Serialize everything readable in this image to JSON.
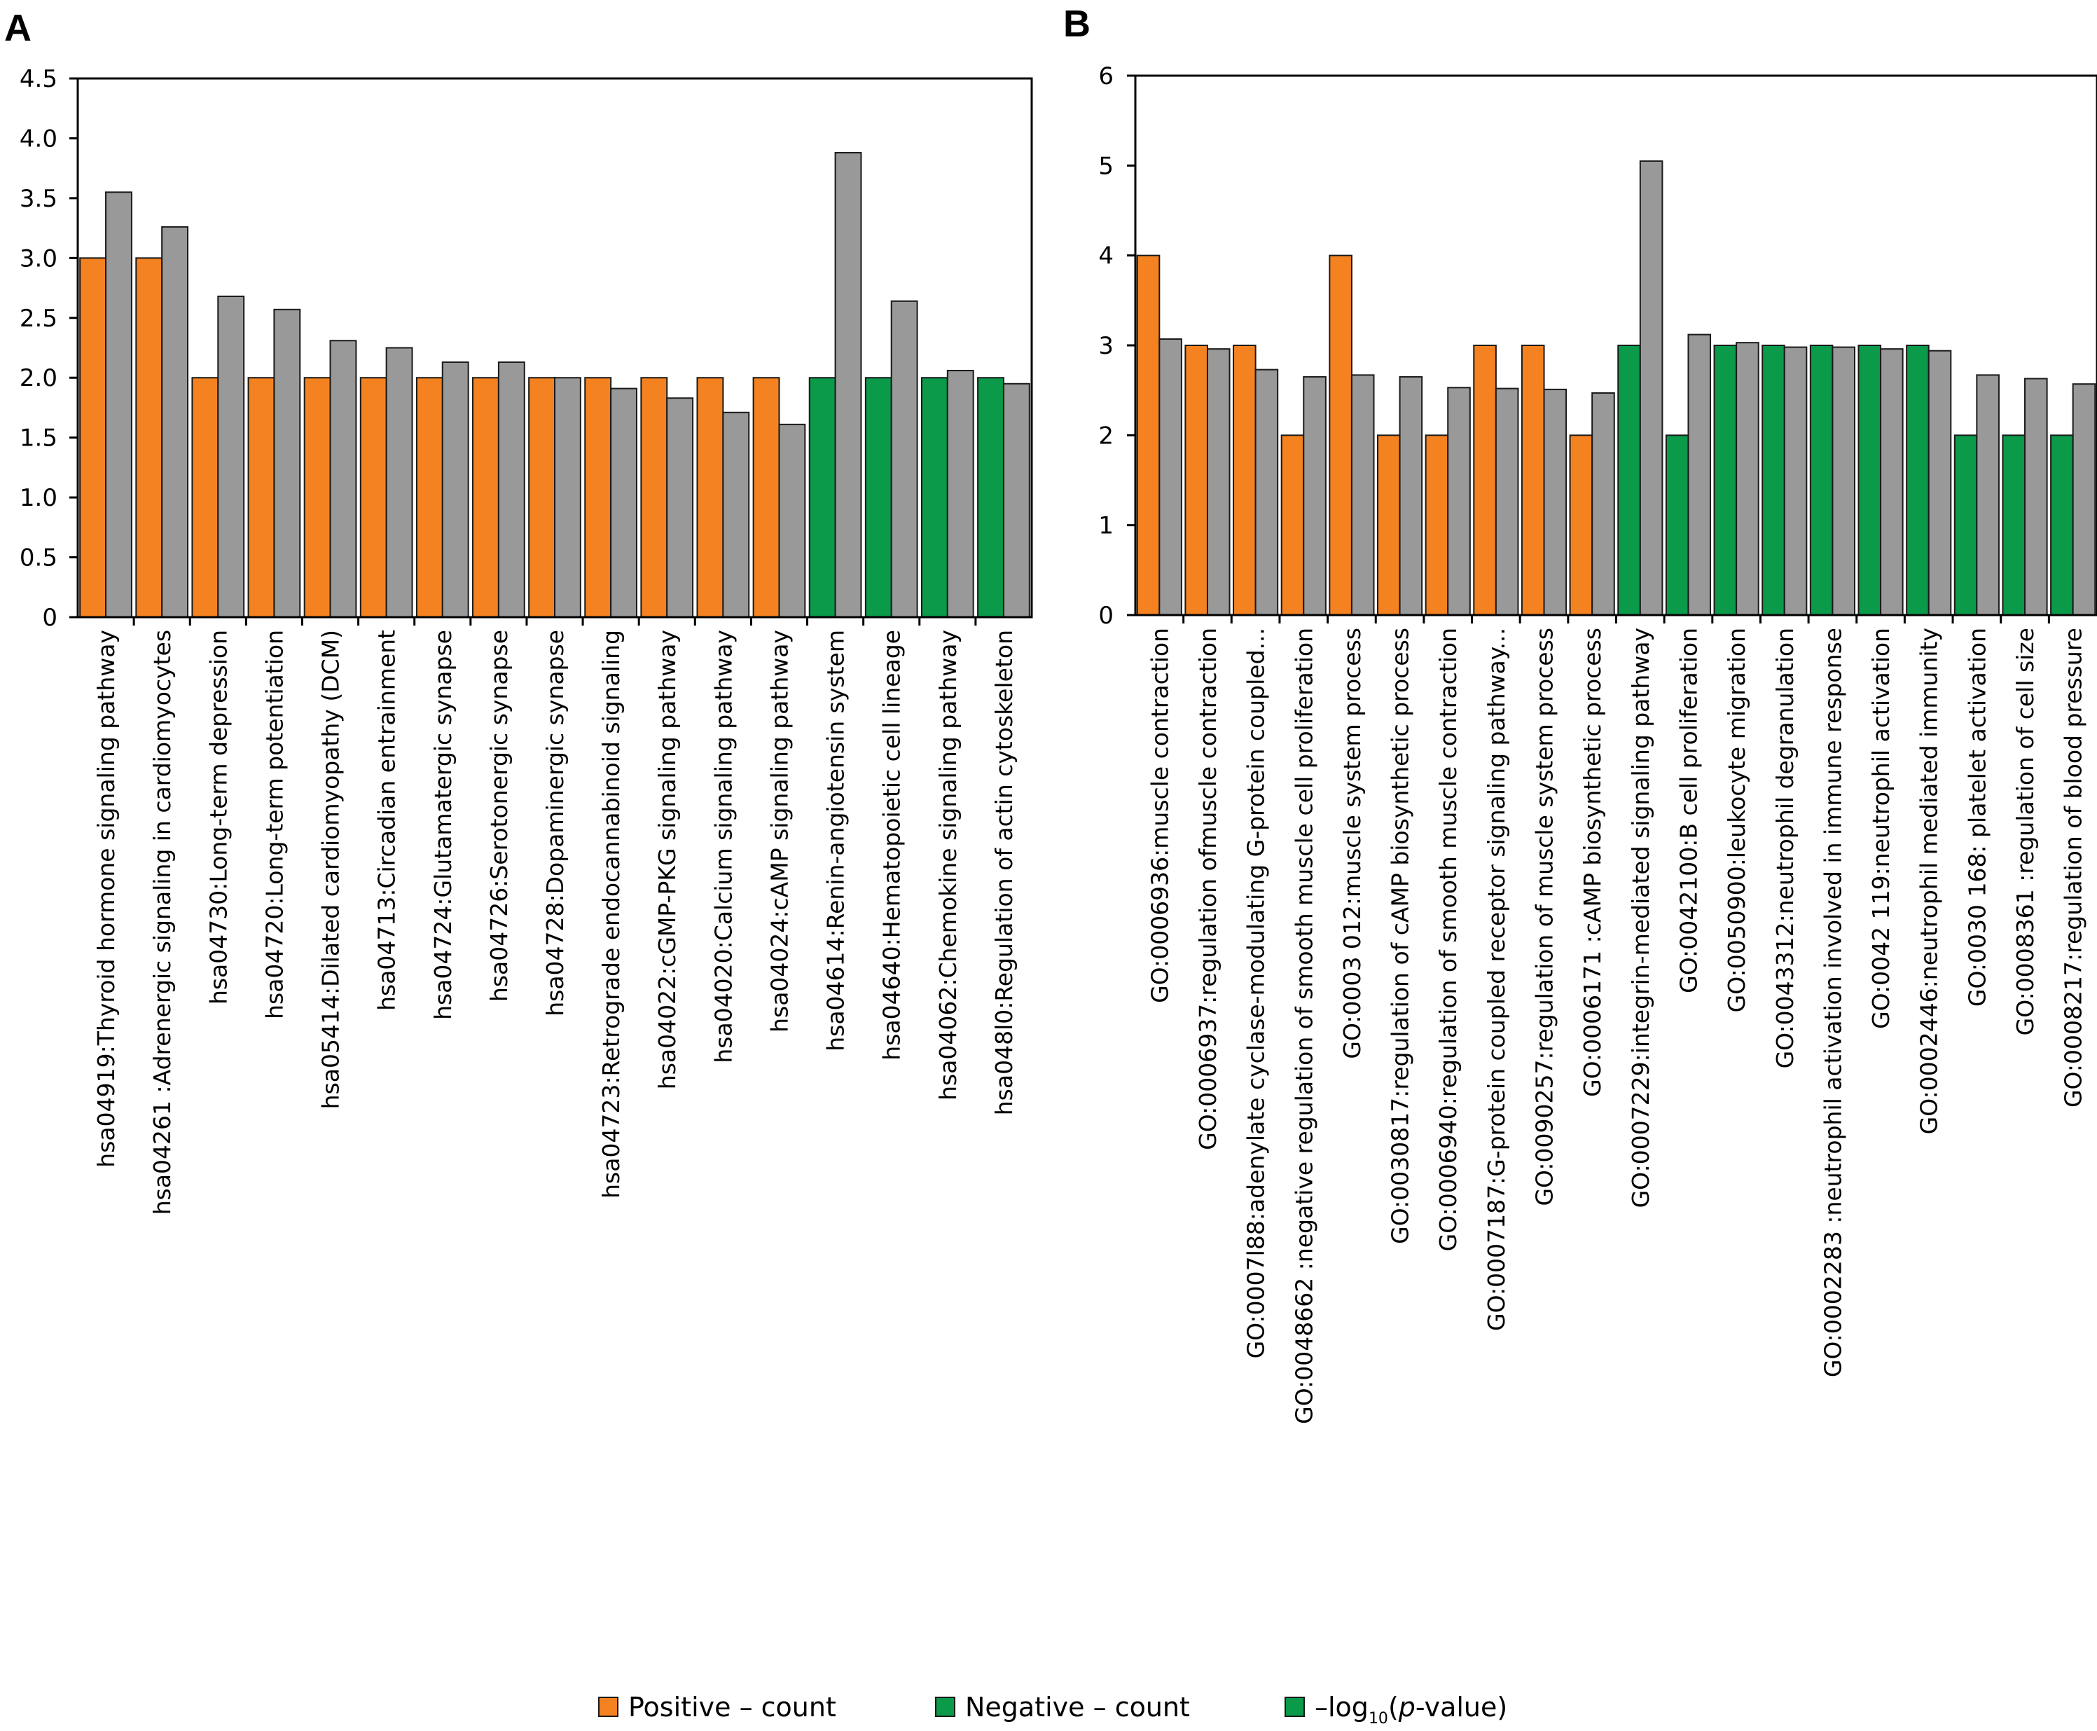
{
  "colors": {
    "positive": "#f58220",
    "negative": "#0a9a4a",
    "gray": "#999999",
    "stroke": "#1a1a1a"
  },
  "legend": {
    "positive": "Positive – count",
    "negative": "Negative – count",
    "log_prefix": "–log",
    "log_sub": "10",
    "log_open": "(",
    "log_p": "p",
    "log_rest": "-value)"
  },
  "chart_data": [
    {
      "panel": "A",
      "type": "bar",
      "ylim": [
        0,
        4.5
      ],
      "yticks": [
        "0",
        "0.5",
        "1.0",
        "1.5",
        "2.0",
        "2.5",
        "3.0",
        "3.5",
        "4.0",
        "4.5"
      ],
      "categories": [
        "hsa04919:Thyroid hormone signaling pathway",
        "hsa04261 :Adrenergic signaling in cardiomyocytes",
        "hsa04730:Long-term depression",
        "hsa04720:Long-term potentiation",
        "hsa05414:Dilated cardiomyopathy (DCM)",
        "hsa04713:Circadian entrainment",
        "hsa04724:Glutamatergic synapse",
        "hsa04726:Serotonergic synapse",
        "hsa04728:Dopaminergic synapse",
        "hsa04723:Retrograde endocannabinoid signaling",
        "hsa04022:cGMP-PKG signaling pathway",
        "hsa04020:Calcium signaling pathway",
        "hsa04024:cAMP signaling pathway",
        "hsa04614:Renin-angiotensin system",
        "hsa04640:Hematopoietic cell lineage",
        "hsa04062:Chemokine signaling pathway",
        "hsa048l0:Regulation of actin cytoskeleton"
      ],
      "count_group": [
        "positive",
        "positive",
        "positive",
        "positive",
        "positive",
        "positive",
        "positive",
        "positive",
        "positive",
        "positive",
        "positive",
        "positive",
        "positive",
        "negative",
        "negative",
        "negative",
        "negative"
      ],
      "series": [
        {
          "values": [
            3,
            3,
            2,
            2,
            2,
            2,
            2,
            2,
            2,
            2,
            2,
            2,
            2,
            2,
            2,
            2,
            2
          ]
        },
        {
          "values": [
            3.55,
            3.26,
            2.68,
            2.57,
            2.31,
            2.25,
            2.13,
            2.13,
            2.0,
            1.91,
            1.83,
            1.71,
            1.61,
            3.88,
            2.64,
            2.06,
            1.95
          ]
        }
      ]
    },
    {
      "panel": "B",
      "type": "bar",
      "ylim": [
        0,
        6
      ],
      "yticks": [
        "0",
        "1",
        "2",
        "3",
        "4",
        "5",
        "6"
      ],
      "categories": [
        "GO:0006936:muscle contraction",
        "GO:0006937:regulation ofmuscle contraction",
        "GO:0007l88:adenylate cyclase-modulating G-protein coupled...",
        "GO:0048662 :negative regulation of smooth muscle cell proliferation",
        "GO:0003 012:muscle system process",
        "GO:0030817:regulation of cAMP biosynthetic process",
        "GO:0006940:regulation of smooth muscle contraction",
        "GO:0007187:G-protein coupled receptor signaling pathway...",
        "GO:0090257:regulation of muscle system process",
        "GO:0006171 :cAMP biosynthetic process",
        "GO:0007229:integrin-mediated signaling pathway",
        "GO:0042100:B cell proliferation",
        "GO:0050900:leukocyte migration",
        "GO:0043312:neutrophil degranulation",
        "GO:0002283 :neutrophil activation involved in immune response",
        "GO:0042 119:neutrophil activation",
        "GO:0002446:neutrophil mediated immunity",
        "GO:0030 168: platelet activation",
        "GO:0008361 :regulation of cell size",
        "GO:0008217:regulation of blood pressure"
      ],
      "count_group": [
        "positive",
        "positive",
        "positive",
        "positive",
        "positive",
        "positive",
        "positive",
        "positive",
        "positive",
        "positive",
        "negative",
        "negative",
        "negative",
        "negative",
        "negative",
        "negative",
        "negative",
        "negative",
        "negative",
        "negative"
      ],
      "series": [
        {
          "values": [
            4,
            3,
            3,
            2,
            4,
            2,
            2,
            3,
            3,
            2,
            3,
            2,
            3,
            3,
            3,
            3,
            3,
            2,
            2,
            2
          ]
        },
        {
          "values": [
            3.07,
            2.96,
            2.73,
            2.65,
            2.67,
            2.65,
            2.53,
            2.52,
            2.51,
            2.47,
            5.05,
            3.12,
            3.03,
            2.98,
            2.98,
            2.96,
            2.94,
            2.67,
            2.63,
            2.57
          ]
        }
      ]
    }
  ]
}
